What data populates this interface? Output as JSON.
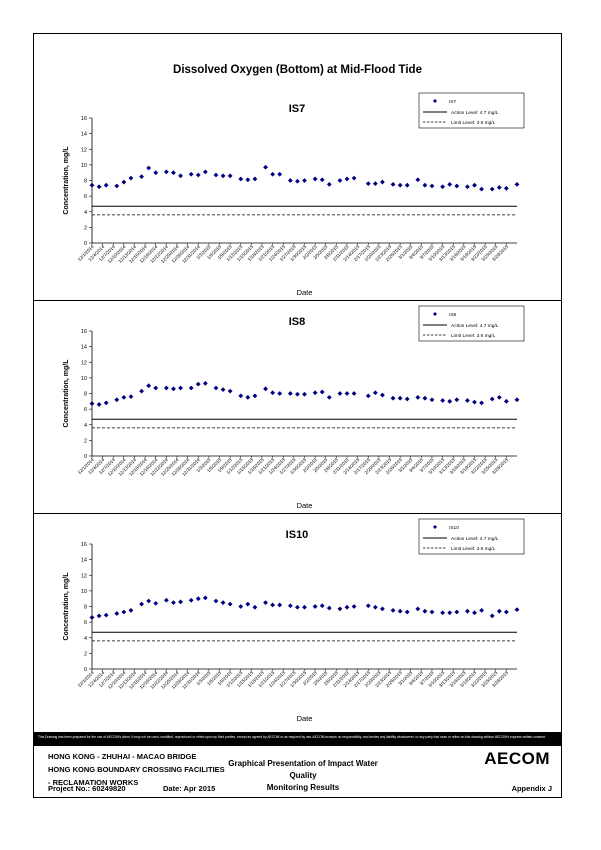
{
  "main_title": "Dissolved Oxygen (Bottom) at Mid-Flood Tide",
  "legend_labels": {
    "action": "Action Level: 4.7 mg/L",
    "limit": "Limit Level: 3.6 mg/L"
  },
  "x_tick_labels": [
    "12/1/2014",
    "12/4/2014",
    "12/7/2014",
    "12/10/2014",
    "12/13/2014",
    "12/16/2014",
    "12/19/2014",
    "12/22/2014",
    "12/25/2014",
    "12/28/2014",
    "12/31/2014",
    "1/3/2015",
    "1/6/2015",
    "1/9/2015",
    "1/12/2015",
    "1/15/2015",
    "1/18/2015",
    "1/21/2015",
    "1/24/2015",
    "1/27/2015",
    "1/30/2015",
    "2/2/2015",
    "2/5/2015",
    "2/8/2015",
    "2/11/2015",
    "2/14/2015",
    "2/17/2015",
    "2/20/2015",
    "2/23/2015",
    "2/26/2015",
    "3/1/2015",
    "3/4/2015",
    "3/7/2015",
    "3/10/2015",
    "3/13/2015",
    "3/16/2015",
    "3/19/2015",
    "3/22/2015",
    "3/25/2015",
    "3/28/2015"
  ],
  "chart_data": [
    {
      "type": "scatter",
      "title": "IS7",
      "xlabel": "Date",
      "ylabel": "Concentration, mg/L",
      "ylim": [
        0,
        16
      ],
      "yticks": [
        0,
        2,
        4,
        6,
        8,
        10,
        12,
        14,
        16
      ],
      "xlim": [
        "12/1/2014",
        "3/31/2015"
      ],
      "legend_position": "top-right",
      "series": [
        {
          "name": "IS7",
          "marker": "diamond",
          "color": "#000080",
          "points": [
            [
              "12/1/2014",
              7.4
            ],
            [
              "12/3/2014",
              7.2
            ],
            [
              "12/5/2014",
              7.4
            ],
            [
              "12/8/2014",
              7.3
            ],
            [
              "12/10/2014",
              7.8
            ],
            [
              "12/12/2014",
              8.3
            ],
            [
              "12/15/2014",
              8.5
            ],
            [
              "12/17/2014",
              9.6
            ],
            [
              "12/19/2014",
              9.0
            ],
            [
              "12/22/2014",
              9.1
            ],
            [
              "12/24/2014",
              9.0
            ],
            [
              "12/26/2014",
              8.6
            ],
            [
              "12/29/2014",
              8.8
            ],
            [
              "12/31/2014",
              8.7
            ],
            [
              "1/2/2015",
              9.1
            ],
            [
              "1/5/2015",
              8.7
            ],
            [
              "1/7/2015",
              8.6
            ],
            [
              "1/9/2015",
              8.6
            ],
            [
              "1/12/2015",
              8.2
            ],
            [
              "1/14/2015",
              8.1
            ],
            [
              "1/16/2015",
              8.2
            ],
            [
              "1/19/2015",
              9.7
            ],
            [
              "1/21/2015",
              8.8
            ],
            [
              "1/23/2015",
              8.8
            ],
            [
              "1/26/2015",
              8.0
            ],
            [
              "1/28/2015",
              7.9
            ],
            [
              "1/30/2015",
              8.0
            ],
            [
              "2/2/2015",
              8.2
            ],
            [
              "2/4/2015",
              8.1
            ],
            [
              "2/6/2015",
              7.5
            ],
            [
              "2/9/2015",
              8.0
            ],
            [
              "2/11/2015",
              8.2
            ],
            [
              "2/13/2015",
              8.3
            ],
            [
              "2/17/2015",
              7.6
            ],
            [
              "2/19/2015",
              7.6
            ],
            [
              "2/21/2015",
              7.8
            ],
            [
              "2/24/2015",
              7.5
            ],
            [
              "2/26/2015",
              7.4
            ],
            [
              "2/28/2015",
              7.4
            ],
            [
              "3/3/2015",
              8.1
            ],
            [
              "3/5/2015",
              7.4
            ],
            [
              "3/7/2015",
              7.3
            ],
            [
              "3/10/2015",
              7.2
            ],
            [
              "3/12/2015",
              7.5
            ],
            [
              "3/14/2015",
              7.3
            ],
            [
              "3/17/2015",
              7.2
            ],
            [
              "3/19/2015",
              7.4
            ],
            [
              "3/21/2015",
              6.9
            ],
            [
              "3/24/2015",
              6.9
            ],
            [
              "3/26/2015",
              7.1
            ],
            [
              "3/28/2015",
              7.0
            ],
            [
              "3/31/2015",
              7.5
            ]
          ]
        },
        {
          "name": "Action Level: 4.7 mg/L",
          "style": "solid",
          "y": 4.7
        },
        {
          "name": "Limit Level: 3.6 mg/L",
          "style": "dashed",
          "y": 3.6
        }
      ]
    },
    {
      "type": "scatter",
      "title": "IS8",
      "xlabel": "Date",
      "ylabel": "Concentration, mg/L",
      "ylim": [
        0,
        16
      ],
      "yticks": [
        0,
        2,
        4,
        6,
        8,
        10,
        12,
        14,
        16
      ],
      "xlim": [
        "12/1/2014",
        "3/31/2015"
      ],
      "legend_position": "top-right",
      "series": [
        {
          "name": "IS8",
          "marker": "diamond",
          "color": "#000080",
          "points": [
            [
              "12/1/2014",
              6.7
            ],
            [
              "12/3/2014",
              6.6
            ],
            [
              "12/5/2014",
              6.8
            ],
            [
              "12/8/2014",
              7.2
            ],
            [
              "12/10/2014",
              7.5
            ],
            [
              "12/12/2014",
              7.6
            ],
            [
              "12/15/2014",
              8.3
            ],
            [
              "12/17/2014",
              9.0
            ],
            [
              "12/19/2014",
              8.7
            ],
            [
              "12/22/2014",
              8.7
            ],
            [
              "12/24/2014",
              8.6
            ],
            [
              "12/26/2014",
              8.7
            ],
            [
              "12/29/2014",
              8.7
            ],
            [
              "12/31/2014",
              9.2
            ],
            [
              "1/2/2015",
              9.3
            ],
            [
              "1/5/2015",
              8.7
            ],
            [
              "1/7/2015",
              8.5
            ],
            [
              "1/9/2015",
              8.3
            ],
            [
              "1/12/2015",
              7.7
            ],
            [
              "1/14/2015",
              7.5
            ],
            [
              "1/16/2015",
              7.7
            ],
            [
              "1/19/2015",
              8.6
            ],
            [
              "1/21/2015",
              8.1
            ],
            [
              "1/23/2015",
              8.0
            ],
            [
              "1/26/2015",
              8.0
            ],
            [
              "1/28/2015",
              7.9
            ],
            [
              "1/30/2015",
              7.9
            ],
            [
              "2/2/2015",
              8.1
            ],
            [
              "2/4/2015",
              8.2
            ],
            [
              "2/6/2015",
              7.5
            ],
            [
              "2/9/2015",
              8.0
            ],
            [
              "2/11/2015",
              8.0
            ],
            [
              "2/13/2015",
              8.0
            ],
            [
              "2/17/2015",
              7.7
            ],
            [
              "2/19/2015",
              8.1
            ],
            [
              "2/21/2015",
              7.8
            ],
            [
              "2/24/2015",
              7.4
            ],
            [
              "2/26/2015",
              7.4
            ],
            [
              "2/28/2015",
              7.3
            ],
            [
              "3/3/2015",
              7.5
            ],
            [
              "3/5/2015",
              7.4
            ],
            [
              "3/7/2015",
              7.2
            ],
            [
              "3/10/2015",
              7.1
            ],
            [
              "3/12/2015",
              7.0
            ],
            [
              "3/14/2015",
              7.2
            ],
            [
              "3/17/2015",
              7.1
            ],
            [
              "3/19/2015",
              6.9
            ],
            [
              "3/21/2015",
              6.8
            ],
            [
              "3/24/2015",
              7.3
            ],
            [
              "3/26/2015",
              7.5
            ],
            [
              "3/28/2015",
              7.0
            ],
            [
              "3/31/2015",
              7.2
            ]
          ]
        },
        {
          "name": "Action Level: 4.7 mg/L",
          "style": "solid",
          "y": 4.7
        },
        {
          "name": "Limit Level: 3.6 mg/L",
          "style": "dashed",
          "y": 3.6
        }
      ]
    },
    {
      "type": "scatter",
      "title": "IS10",
      "xlabel": "Date",
      "ylabel": "Concentration, mg/L",
      "ylim": [
        0,
        16
      ],
      "yticks": [
        0,
        2,
        4,
        6,
        8,
        10,
        12,
        14,
        16
      ],
      "xlim": [
        "12/1/2014",
        "3/31/2015"
      ],
      "legend_position": "top-right",
      "series": [
        {
          "name": "IS10",
          "marker": "diamond",
          "color": "#000080",
          "points": [
            [
              "12/1/2014",
              6.6
            ],
            [
              "12/3/2014",
              6.8
            ],
            [
              "12/5/2014",
              6.9
            ],
            [
              "12/8/2014",
              7.1
            ],
            [
              "12/10/2014",
              7.3
            ],
            [
              "12/12/2014",
              7.5
            ],
            [
              "12/15/2014",
              8.3
            ],
            [
              "12/17/2014",
              8.7
            ],
            [
              "12/19/2014",
              8.4
            ],
            [
              "12/22/2014",
              8.8
            ],
            [
              "12/24/2014",
              8.5
            ],
            [
              "12/26/2014",
              8.6
            ],
            [
              "12/29/2014",
              8.8
            ],
            [
              "12/31/2014",
              9.0
            ],
            [
              "1/2/2015",
              9.1
            ],
            [
              "1/5/2015",
              8.7
            ],
            [
              "1/7/2015",
              8.5
            ],
            [
              "1/9/2015",
              8.3
            ],
            [
              "1/12/2015",
              8.0
            ],
            [
              "1/14/2015",
              8.3
            ],
            [
              "1/16/2015",
              7.9
            ],
            [
              "1/19/2015",
              8.5
            ],
            [
              "1/21/2015",
              8.2
            ],
            [
              "1/23/2015",
              8.2
            ],
            [
              "1/26/2015",
              8.1
            ],
            [
              "1/28/2015",
              7.9
            ],
            [
              "1/30/2015",
              7.9
            ],
            [
              "2/2/2015",
              8.0
            ],
            [
              "2/4/2015",
              8.1
            ],
            [
              "2/6/2015",
              7.8
            ],
            [
              "2/9/2015",
              7.7
            ],
            [
              "2/11/2015",
              7.9
            ],
            [
              "2/13/2015",
              8.0
            ],
            [
              "2/17/2015",
              8.1
            ],
            [
              "2/19/2015",
              7.9
            ],
            [
              "2/21/2015",
              7.7
            ],
            [
              "2/24/2015",
              7.5
            ],
            [
              "2/26/2015",
              7.4
            ],
            [
              "2/28/2015",
              7.3
            ],
            [
              "3/3/2015",
              7.7
            ],
            [
              "3/5/2015",
              7.4
            ],
            [
              "3/7/2015",
              7.3
            ],
            [
              "3/10/2015",
              7.2
            ],
            [
              "3/12/2015",
              7.2
            ],
            [
              "3/14/2015",
              7.3
            ],
            [
              "3/17/2015",
              7.4
            ],
            [
              "3/19/2015",
              7.2
            ],
            [
              "3/21/2015",
              7.5
            ],
            [
              "3/24/2015",
              6.8
            ],
            [
              "3/26/2015",
              7.4
            ],
            [
              "3/28/2015",
              7.3
            ],
            [
              "3/31/2015",
              7.6
            ]
          ]
        },
        {
          "name": "Action Level: 4.7 mg/L",
          "style": "solid",
          "y": 4.7
        },
        {
          "name": "Limit Level: 3.6 mg/L",
          "style": "dashed",
          "y": 3.6
        }
      ]
    }
  ],
  "disclaimer": "This Drawing has been prepared for the use of AECOM's client. It may not be used, modified, reproduced or relied upon by third parties, except as agreed by AECOM or as required by law. AECOM accepts no responsibility, and denies any liability whatsoever, to any party that uses or relies on this drawing without AECOM's express written consent.",
  "footer": {
    "line1": "HONG KONG - ZHUHAI - MACAO BRIDGE",
    "line2": "HONG KONG BOUNDARY CROSSING FACILITIES",
    "line3": "- RECLAMATION WORKS",
    "center1": "Graphical Presentation of Impact Water Quality",
    "center2": "Monitoring Results",
    "logo": "AECOM",
    "project": "Project No.: 60249820",
    "date": "Date: Apr 2015",
    "appendix": "Appendix J"
  }
}
